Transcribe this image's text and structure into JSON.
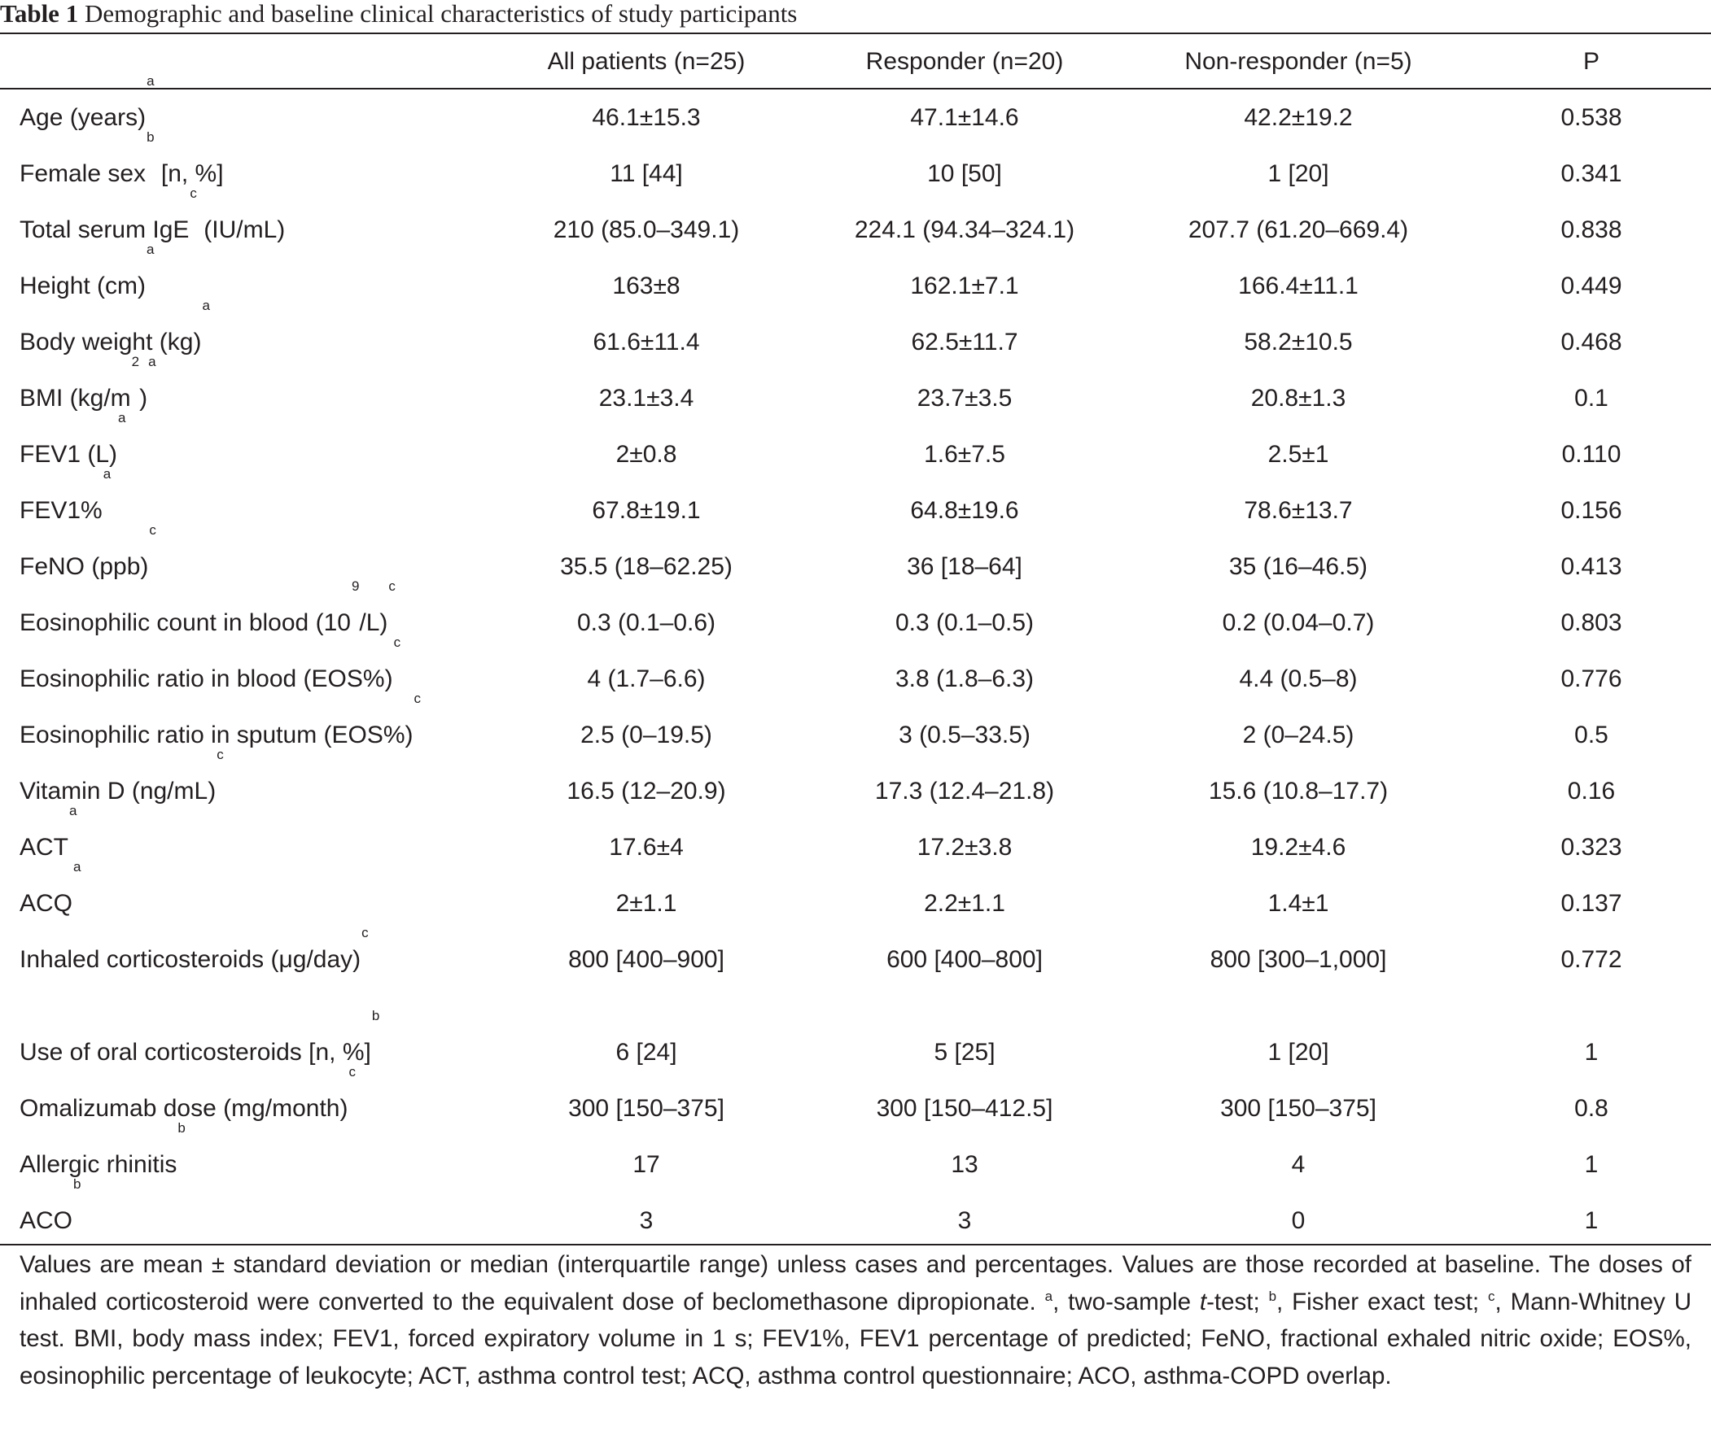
{
  "caption": {
    "label": "Table 1",
    "text": "Demographic and baseline clinical characteristics of study participants"
  },
  "columns": [
    "",
    "All patients (n=25)",
    "Responder (n=20)",
    "Non-responder (n=5)",
    "P"
  ],
  "rows": [
    {
      "label": "Age (years)",
      "sup": "a",
      "values": [
        "46.1±15.3",
        "47.1±14.6",
        "42.2±19.2",
        "0.538"
      ]
    },
    {
      "label": "Female sex",
      "sup": "b",
      "tail": " [n, %]",
      "values": [
        "11 [44]",
        "10 [50]",
        "1 [20]",
        "0.341"
      ]
    },
    {
      "label": "Total serum IgE",
      "sup": "c",
      "tail": " (IU/mL)",
      "values": [
        "210 (85.0–349.1)",
        "224.1 (94.34–324.1)",
        "207.7 (61.20–669.4)",
        "0.838"
      ]
    },
    {
      "label": "Height (cm)",
      "sup": "a",
      "values": [
        "163±8",
        "162.1±7.1",
        "166.4±11.1",
        "0.449"
      ]
    },
    {
      "label": "Body weight (kg)",
      "sup": "a",
      "values": [
        "61.6±11.4",
        "62.5±11.7",
        "58.2±10.5",
        "0.468"
      ]
    },
    {
      "label": "BMI (kg/m",
      "sup": "2",
      "tail": ")",
      "sup2": "a",
      "values": [
        "23.1±3.4",
        "23.7±3.5",
        "20.8±1.3",
        "0.1"
      ]
    },
    {
      "label": "FEV1 (L)",
      "sup": "a",
      "values": [
        "2±0.8",
        "1.6±7.5",
        "2.5±1",
        "0.110"
      ]
    },
    {
      "label": "FEV1%",
      "sup": "a",
      "values": [
        "67.8±19.1",
        "64.8±19.6",
        "78.6±13.7",
        "0.156"
      ]
    },
    {
      "label": "FeNO (ppb)",
      "sup": "c",
      "values": [
        "35.5 (18–62.25)",
        "36 [18–64]",
        "35 (16–46.5)",
        "0.413"
      ]
    },
    {
      "label": "Eosinophilic count in blood (10",
      "sup": "9",
      "tail": "/L)",
      "sup2": "c",
      "values": [
        "0.3 (0.1–0.6)",
        "0.3 (0.1–0.5)",
        "0.2 (0.04–0.7)",
        "0.803"
      ]
    },
    {
      "label": "Eosinophilic ratio in blood (EOS%)",
      "sup": "c",
      "values": [
        "4 (1.7–6.6)",
        "3.8 (1.8–6.3)",
        "4.4 (0.5–8)",
        "0.776"
      ]
    },
    {
      "label": "Eosinophilic ratio in sputum (EOS%)",
      "sup": "c",
      "values": [
        "2.5 (0–19.5)",
        "3 (0.5–33.5)",
        "2 (0–24.5)",
        "0.5"
      ]
    },
    {
      "label": "Vitamin D (ng/mL)",
      "sup": "c",
      "values": [
        "16.5 (12–20.9)",
        "17.3 (12.4–21.8)",
        "15.6 (10.8–17.7)",
        "0.16"
      ]
    },
    {
      "label": "ACT",
      "sup": "a",
      "values": [
        "17.6±4",
        "17.2±3.8",
        "19.2±4.6",
        "0.323"
      ]
    },
    {
      "label": "ACQ",
      "sup": "a",
      "values": [
        "2±1.1",
        "2.2±1.1",
        "1.4±1",
        "0.137"
      ]
    },
    {
      "label": "Inhaled corticosteroids (μg/day)",
      "sup": "c",
      "tall": true,
      "values": [
        "800 [400–900]",
        "600 [400–800]",
        "800 [300–1,000]",
        "0.772"
      ]
    },
    {
      "label": "Use of oral corticosteroids [n, %]",
      "sup": "b",
      "values": [
        "6 [24]",
        "5 [25]",
        "1 [20]",
        "1"
      ]
    },
    {
      "label": "Omalizumab dose (mg/month)",
      "sup": "c",
      "values": [
        "300 [150–375]",
        "300 [150–412.5]",
        "300 [150–375]",
        "0.8"
      ]
    },
    {
      "label": "Allergic rhinitis",
      "sup": "b",
      "values": [
        "17",
        "13",
        "4",
        "1"
      ]
    },
    {
      "label": "ACO",
      "sup": "b",
      "values": [
        "3",
        "3",
        "0",
        "1"
      ]
    }
  ],
  "footer": {
    "p1": "Values are mean ± standard deviation or median (interquartile range) unless cases and percentages. Values are those recorded at baseline. The doses of inhaled corticosteroid were converted to the equivalent dose of beclomethasone dipropionate. ",
    "sa": "a",
    "p2": ", two-sample ",
    "t": "t",
    "p3": "-test; ",
    "sb": "b",
    "p4": ", Fisher exact test; ",
    "sc": "c",
    "p5": ", Mann-Whitney U test. BMI, body mass index; FEV1, forced expiratory volume in 1 s; FEV1%, FEV1 percentage of predicted; FeNO, fractional exhaled nitric oxide; EOS%, eosinophilic percentage of leukocyte; ACT, asthma control test; ACQ, asthma control questionnaire; ACO, asthma-COPD overlap."
  }
}
